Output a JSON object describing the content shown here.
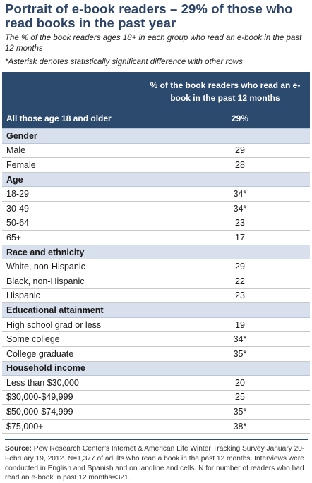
{
  "title": "Portrait of e-book readers – 29% of those who read books in the past year",
  "subtitle": "The % of the book readers ages 18+ in each group who read an e-book in the past 12 months",
  "note": "*Asterisk denotes statistically significant difference with other rows",
  "header": {
    "column_label": "% of the book readers who read an e-book in the past 12 months",
    "all_label": "All those age 18 and older",
    "all_value": "29%"
  },
  "chart_data": {
    "type": "table",
    "columns": [
      "",
      "% of the book readers who read an e-book in the past 12 months"
    ],
    "groups": [
      {
        "name": "Gender",
        "rows": [
          {
            "label": "Male",
            "value": "29"
          },
          {
            "label": "Female",
            "value": "28"
          }
        ]
      },
      {
        "name": "Age",
        "rows": [
          {
            "label": "18-29",
            "value": "34*"
          },
          {
            "label": "30-49",
            "value": "34*"
          },
          {
            "label": "50-64",
            "value": "23"
          },
          {
            "label": "65+",
            "value": "17"
          }
        ]
      },
      {
        "name": "Race and ethnicity",
        "rows": [
          {
            "label": "White, non-Hispanic",
            "value": "29"
          },
          {
            "label": "Black, non-Hispanic",
            "value": "22"
          },
          {
            "label": "Hispanic",
            "value": "23"
          }
        ]
      },
      {
        "name": "Educational attainment",
        "rows": [
          {
            "label": "High school grad or less",
            "value": "19"
          },
          {
            "label": "Some college",
            "value": "34*"
          },
          {
            "label": "College graduate",
            "value": "35*"
          }
        ]
      },
      {
        "name": "Household income",
        "rows": [
          {
            "label": "Less than $30,000",
            "value": "20"
          },
          {
            "label": "$30,000-$49,999",
            "value": "25"
          },
          {
            "label": "$50,000-$74,999",
            "value": "35*"
          },
          {
            "label": "$75,000+",
            "value": "38*"
          }
        ]
      }
    ]
  },
  "source": {
    "label": "Source:",
    "text": "Pew Research Center’s Internet & American Life Winter Tracking Survey January 20-February 19, 2012. N=1,377 of adults who read a book in the past 12 months. Interviews were conducted in English and Spanish and on landline and cells. N for number of readers who had read an e-book in past 12 months=321."
  },
  "colors": {
    "header_bg": "#2c4a6e",
    "group_bg": "#d7e0ec",
    "title": "#2d4466"
  }
}
